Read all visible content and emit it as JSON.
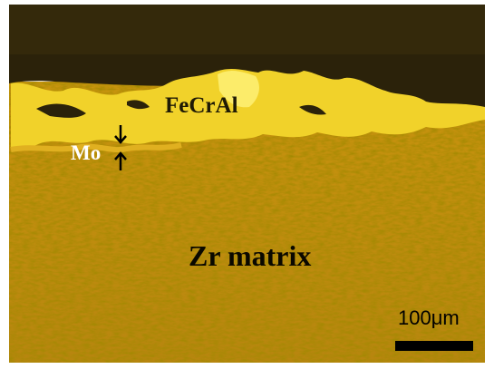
{
  "labels": {
    "coating": "FeCrAl",
    "interlayer": "Mo",
    "substrate": "Zr matrix"
  },
  "scale_bar": {
    "label": "100μm"
  }
}
